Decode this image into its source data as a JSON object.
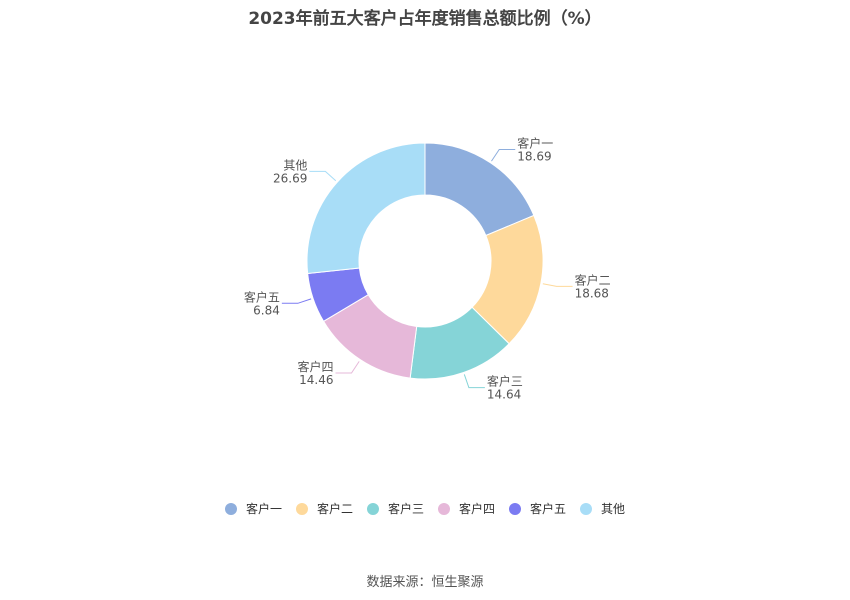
{
  "title": "2023年前五大客户占年度销售总额比例（%）",
  "source": "数据来源：恒生聚源",
  "chart_data": {
    "type": "pie",
    "donut": true,
    "title": "2023年前五大客户占年度销售总额比例（%）",
    "categories": [
      "客户一",
      "客户二",
      "客户三",
      "客户四",
      "客户五",
      "其他"
    ],
    "values": [
      18.69,
      18.68,
      14.64,
      14.46,
      6.84,
      26.69
    ],
    "value_labels": [
      "18.69",
      "18.68",
      "14.64",
      "14.46",
      "6.84",
      "26.69"
    ],
    "colors": [
      "#8eaedd",
      "#fed99b",
      "#85d4d7",
      "#e6b8d9",
      "#7b7bf2",
      "#a8ddf7"
    ],
    "legend_position": "bottom"
  }
}
